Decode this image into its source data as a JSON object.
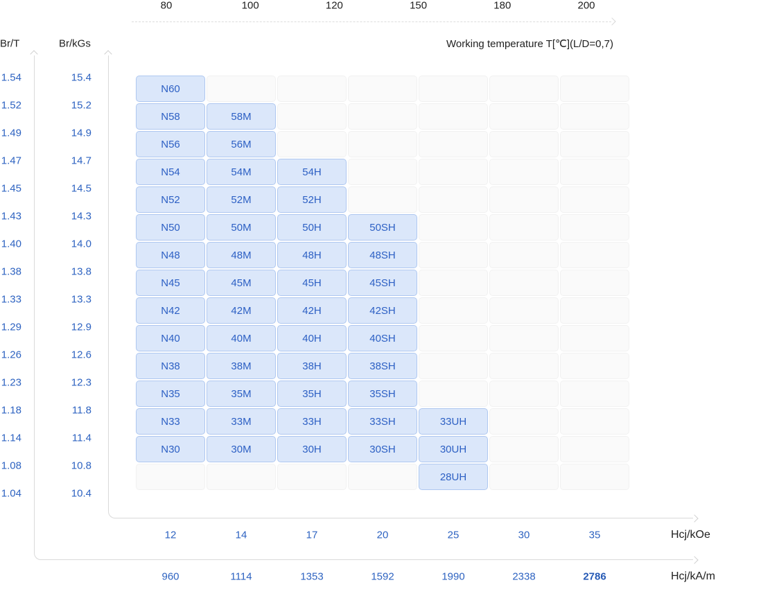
{
  "colors": {
    "accent_blue_text": "#2e63c1",
    "cell_fill": "#dbe7fa",
    "cell_border": "#aec7f0",
    "empty_cell_fill": "#fafafa",
    "empty_cell_border": "#f1f1f1",
    "axis_line": "#d9d9d9",
    "dark_text": "#212121"
  },
  "top_axis": {
    "title": "Working temperature T[℃](L/D=0,7)",
    "ticks": [
      "80",
      "100",
      "120",
      "150",
      "180",
      "200"
    ]
  },
  "left_axis": {
    "primary_label": "Br/T",
    "secondary_label": "Br/kGs",
    "primary_ticks": [
      "1.54",
      "1.52",
      "1.49",
      "1.47",
      "1.45",
      "1.43",
      "1.40",
      "1.38",
      "1.33",
      "1.29",
      "1.26",
      "1.23",
      "1.18",
      "1.14",
      "1.08",
      "1.04"
    ],
    "secondary_ticks": [
      "15.4",
      "15.2",
      "14.9",
      "14.7",
      "14.5",
      "14.3",
      "14.0",
      "13.8",
      "13.3",
      "12.9",
      "12.6",
      "12.3",
      "11.8",
      "11.4",
      "10.8",
      "10.4"
    ]
  },
  "bottom_axis": {
    "primary_unit": "Hcj/kOe",
    "secondary_unit": "Hcj/kA/m",
    "primary_ticks": [
      "12",
      "14",
      "17",
      "20",
      "25",
      "30",
      "35"
    ],
    "secondary_ticks": [
      "960",
      "1114",
      "1353",
      "1592",
      "1990",
      "2338",
      "2786"
    ],
    "secondary_highlight": "2786"
  },
  "chart_data": {
    "type": "table",
    "title": "Sintered NdFeB magnet grade chart: remanence Br vs intrinsic coercivity Hcj and working temperature",
    "top_axis": {
      "label": "Working temperature T[℃](L/D=0,7)",
      "ticks_celsius": [
        80,
        100,
        120,
        150,
        180,
        200
      ]
    },
    "y_axis": {
      "primary": {
        "label": "Br/T",
        "ticks": [
          1.54,
          1.52,
          1.49,
          1.47,
          1.45,
          1.43,
          1.4,
          1.38,
          1.33,
          1.29,
          1.26,
          1.23,
          1.18,
          1.14,
          1.08,
          1.04
        ]
      },
      "secondary": {
        "label": "Br/kGs",
        "ticks": [
          15.4,
          15.2,
          14.9,
          14.7,
          14.5,
          14.3,
          14.0,
          13.8,
          13.3,
          12.9,
          12.6,
          12.3,
          11.8,
          11.4,
          10.8,
          10.4
        ]
      }
    },
    "x_axis": {
      "primary": {
        "label": "Hcj/kOe",
        "ticks": [
          12,
          14,
          17,
          20,
          25,
          30,
          35
        ]
      },
      "secondary": {
        "label": "Hcj/kA/m",
        "ticks": [
          960,
          1114,
          1353,
          1592,
          1990,
          2338,
          2786
        ]
      }
    },
    "columns": 7,
    "rows": 15,
    "grid_on": false,
    "legend": null,
    "cells": [
      [
        "N60",
        null,
        null,
        null,
        null,
        null,
        null
      ],
      [
        "N58",
        "58M",
        null,
        null,
        null,
        null,
        null
      ],
      [
        "N56",
        "56M",
        null,
        null,
        null,
        null,
        null
      ],
      [
        "N54",
        "54M",
        "54H",
        null,
        null,
        null,
        null
      ],
      [
        "N52",
        "52M",
        "52H",
        null,
        null,
        null,
        null
      ],
      [
        "N50",
        "50M",
        "50H",
        "50SH",
        null,
        null,
        null
      ],
      [
        "N48",
        "48M",
        "48H",
        "48SH",
        null,
        null,
        null
      ],
      [
        "N45",
        "45M",
        "45H",
        "45SH",
        null,
        null,
        null
      ],
      [
        "N42",
        "42M",
        "42H",
        "42SH",
        null,
        null,
        null
      ],
      [
        "N40",
        "40M",
        "40H",
        "40SH",
        null,
        null,
        null
      ],
      [
        "N38",
        "38M",
        "38H",
        "38SH",
        null,
        null,
        null
      ],
      [
        "N35",
        "35M",
        "35H",
        "35SH",
        null,
        null,
        null
      ],
      [
        "N33",
        "33M",
        "33H",
        "33SH",
        "33UH",
        null,
        null
      ],
      [
        "N30",
        "30M",
        "30H",
        "30SH",
        "30UH",
        null,
        null
      ],
      [
        null,
        null,
        null,
        null,
        "28UH",
        null,
        null
      ]
    ]
  }
}
